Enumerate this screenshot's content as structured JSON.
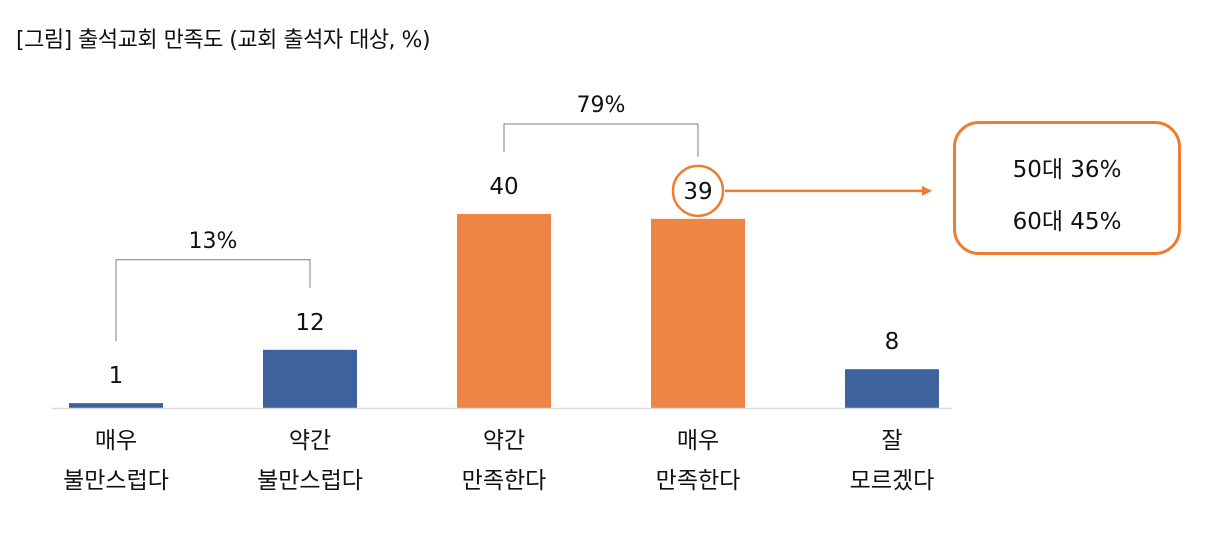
{
  "title": "[그림] 출석교회 만족도 (교회 출석자 대상, %)",
  "colors": {
    "blue": "#3d629e",
    "orange": "#ed8544",
    "bracket": "#7f7f7f",
    "accent": "#ed7d31"
  },
  "chart_data": {
    "type": "bar",
    "title": "[그림] 출석교회 만족도 (교회 출석자 대상, %)",
    "categories": [
      [
        "매우",
        "불만스럽다"
      ],
      [
        "약간",
        "불만스럽다"
      ],
      [
        "약간",
        "만족한다"
      ],
      [
        "매우",
        "만족한다"
      ],
      [
        "잘",
        "모르겠다"
      ]
    ],
    "values": [
      1,
      12,
      40,
      39,
      8
    ],
    "value_labels": [
      "1",
      "12",
      "40",
      "39",
      "8"
    ],
    "bar_colors": [
      "blue",
      "blue",
      "orange",
      "orange",
      "blue"
    ],
    "ylim": [
      0,
      40
    ],
    "grid": false,
    "legend": "none",
    "brackets": [
      {
        "from": 0,
        "to": 1,
        "label": "13%"
      },
      {
        "from": 2,
        "to": 3,
        "label": "79%"
      }
    ],
    "highlight_index": 3,
    "callout": {
      "lines": [
        "50대 36%",
        "60대 45%"
      ]
    }
  }
}
